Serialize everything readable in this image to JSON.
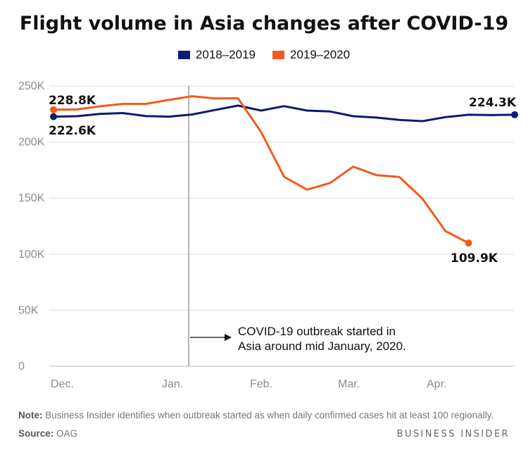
{
  "chart_data": {
    "type": "line",
    "title": "Flight volume in Asia changes after COVID-19",
    "x_tick_labels": [
      "Dec.",
      "Jan.",
      "Feb.",
      "Mar.",
      "Apr."
    ],
    "y_ticks": [
      0,
      50000,
      100000,
      150000,
      200000,
      250000
    ],
    "y_tick_labels": [
      "0",
      "50K",
      "100K",
      "150K",
      "200K",
      "250K"
    ],
    "ylim": [
      0,
      250000
    ],
    "grid": true,
    "legend_position": "top-center",
    "series": [
      {
        "name": "2018–2019",
        "color": "#0d1a73",
        "values": [
          222600,
          223000,
          225000,
          225800,
          223200,
          222600,
          224500,
          228500,
          232500,
          228000,
          232000,
          228000,
          227200,
          223000,
          221800,
          219700,
          218600,
          222200,
          224300,
          224000,
          224300
        ]
      },
      {
        "name": "2019–2020",
        "color": "#f25a1d",
        "values": [
          228800,
          229000,
          231800,
          234000,
          234000,
          237500,
          240800,
          238800,
          239000,
          209000,
          169000,
          157500,
          163500,
          178000,
          170500,
          168800,
          149500,
          120500,
          109900
        ]
      }
    ],
    "annotations": {
      "start_2018": "222.6K",
      "start_2019": "228.8K",
      "end_2018": "224.3K",
      "end_2019": "109.9K",
      "outbreak_line1": "COVID-19 outbreak started in",
      "outbreak_line2": "Asia around mid January, 2020."
    }
  },
  "footer": {
    "note_label": "Note:",
    "note_text": " Business Insider identifies when outbreak started as when daily confirmed cases hit at least 100 regionally.",
    "source_label": "Source:",
    "source_text": " OAG",
    "brand": "BUSINESS INSIDER"
  }
}
